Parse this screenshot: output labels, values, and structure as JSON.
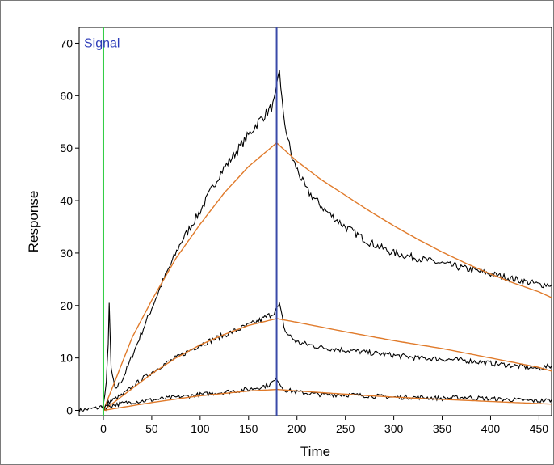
{
  "chart_data": {
    "type": "line",
    "title": "",
    "xlabel": "Time",
    "ylabel": "Response",
    "xlim": [
      -25,
      463
    ],
    "ylim": [
      -1,
      73
    ],
    "xticks": [
      0,
      50,
      100,
      150,
      200,
      250,
      300,
      350,
      400,
      450
    ],
    "yticks": [
      0,
      10,
      20,
      30,
      40,
      50,
      60,
      70
    ],
    "grid": false,
    "annotations": [
      {
        "type": "vline",
        "x": 0,
        "color": "#2ecc40",
        "label": ""
      },
      {
        "type": "vline",
        "x": 179,
        "color": "#3a4aa8",
        "label": ""
      },
      {
        "type": "text",
        "text": "Signal",
        "x": -20,
        "y": 70,
        "color": "#2b3ab8"
      }
    ],
    "series": [
      {
        "kind": "measured",
        "color": "#000000",
        "points": [
          [
            -25,
            0
          ],
          [
            -5,
            0.5
          ],
          [
            0,
            1
          ],
          [
            3,
            5
          ],
          [
            5,
            13
          ],
          [
            6,
            20
          ],
          [
            8,
            8
          ],
          [
            12,
            4
          ],
          [
            20,
            6
          ],
          [
            40,
            15
          ],
          [
            60,
            24
          ],
          [
            80,
            32
          ],
          [
            100,
            38
          ],
          [
            120,
            45
          ],
          [
            140,
            50
          ],
          [
            160,
            55
          ],
          [
            175,
            58
          ],
          [
            178,
            60
          ],
          [
            182,
            65
          ],
          [
            186,
            56
          ],
          [
            195,
            48
          ],
          [
            210,
            42
          ],
          [
            230,
            38
          ],
          [
            250,
            35
          ],
          [
            275,
            32
          ],
          [
            300,
            30
          ],
          [
            325,
            29
          ],
          [
            350,
            28
          ],
          [
            375,
            27
          ],
          [
            400,
            26
          ],
          [
            425,
            25
          ],
          [
            450,
            24
          ],
          [
            463,
            24
          ]
        ]
      },
      {
        "kind": "fit",
        "color": "#e07a2a",
        "points": [
          [
            0,
            0
          ],
          [
            15,
            7
          ],
          [
            30,
            14
          ],
          [
            50,
            21
          ],
          [
            75,
            29
          ],
          [
            100,
            35.5
          ],
          [
            125,
            41.5
          ],
          [
            150,
            46.5
          ],
          [
            179,
            51
          ],
          [
            200,
            47.5
          ],
          [
            225,
            44
          ],
          [
            250,
            41
          ],
          [
            275,
            38
          ],
          [
            300,
            35.2
          ],
          [
            325,
            32.6
          ],
          [
            350,
            30.2
          ],
          [
            375,
            28
          ],
          [
            400,
            26
          ],
          [
            425,
            24.2
          ],
          [
            450,
            22.6
          ],
          [
            463,
            21.5
          ]
        ]
      },
      {
        "kind": "measured",
        "color": "#000000",
        "points": [
          [
            0,
            0
          ],
          [
            5,
            1.5
          ],
          [
            10,
            2
          ],
          [
            20,
            3
          ],
          [
            40,
            6
          ],
          [
            60,
            8.5
          ],
          [
            80,
            10.5
          ],
          [
            100,
            12.5
          ],
          [
            120,
            14
          ],
          [
            140,
            15.5
          ],
          [
            160,
            17
          ],
          [
            175,
            18.5
          ],
          [
            182,
            20
          ],
          [
            188,
            15
          ],
          [
            200,
            13
          ],
          [
            225,
            12
          ],
          [
            250,
            11.5
          ],
          [
            275,
            11
          ],
          [
            300,
            10.5
          ],
          [
            325,
            10
          ],
          [
            350,
            9.8
          ],
          [
            375,
            9.5
          ],
          [
            400,
            9
          ],
          [
            425,
            8.5
          ],
          [
            450,
            8
          ],
          [
            463,
            8.5
          ]
        ]
      },
      {
        "kind": "fit",
        "color": "#e07a2a",
        "points": [
          [
            0,
            0
          ],
          [
            25,
            3.5
          ],
          [
            50,
            7
          ],
          [
            75,
            10
          ],
          [
            100,
            12.5
          ],
          [
            125,
            14.5
          ],
          [
            150,
            16.2
          ],
          [
            179,
            17.5
          ],
          [
            200,
            16.8
          ],
          [
            250,
            15
          ],
          [
            300,
            13.3
          ],
          [
            350,
            11.8
          ],
          [
            400,
            10
          ],
          [
            450,
            8.2
          ],
          [
            463,
            7.5
          ]
        ]
      },
      {
        "kind": "measured",
        "color": "#000000",
        "points": [
          [
            0,
            0
          ],
          [
            5,
            0.8
          ],
          [
            10,
            1
          ],
          [
            25,
            1.5
          ],
          [
            50,
            2
          ],
          [
            75,
            2.5
          ],
          [
            100,
            3
          ],
          [
            125,
            3.5
          ],
          [
            150,
            4
          ],
          [
            170,
            4.8
          ],
          [
            180,
            6
          ],
          [
            186,
            4
          ],
          [
            200,
            3.5
          ],
          [
            225,
            3
          ],
          [
            250,
            3
          ],
          [
            275,
            2.8
          ],
          [
            300,
            2.5
          ],
          [
            325,
            2.5
          ],
          [
            350,
            2.3
          ],
          [
            375,
            2.5
          ],
          [
            400,
            2.2
          ],
          [
            425,
            2
          ],
          [
            450,
            1.8
          ],
          [
            463,
            2
          ]
        ]
      },
      {
        "kind": "fit",
        "color": "#e07a2a",
        "points": [
          [
            0,
            0
          ],
          [
            50,
            1.5
          ],
          [
            100,
            2.8
          ],
          [
            150,
            3.7
          ],
          [
            179,
            4
          ],
          [
            225,
            3.4
          ],
          [
            275,
            2.8
          ],
          [
            325,
            2.3
          ],
          [
            375,
            1.9
          ],
          [
            425,
            1.5
          ],
          [
            463,
            1.2
          ]
        ]
      }
    ]
  }
}
